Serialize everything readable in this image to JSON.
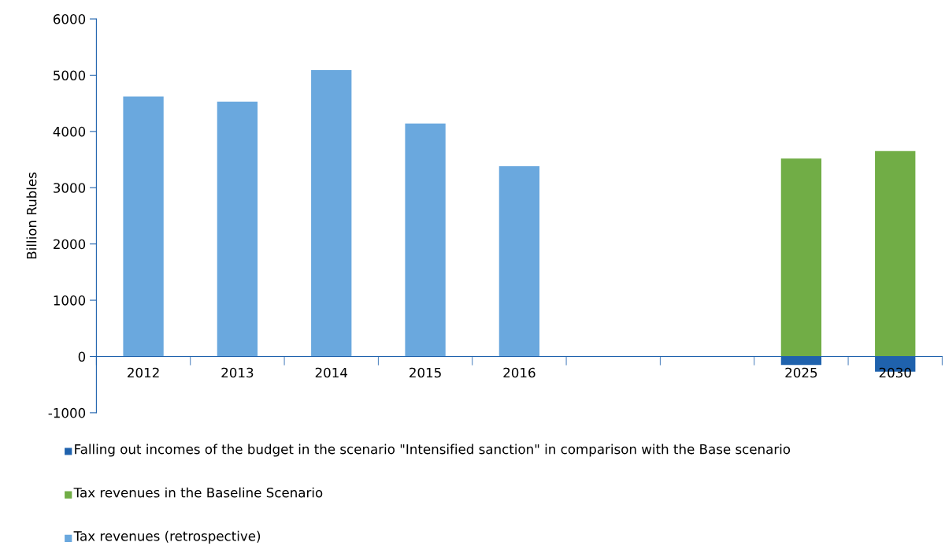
{
  "chart_data": {
    "type": "bar",
    "ylabel": "Billion Rubles",
    "categories": [
      "2012",
      "2013",
      "2014",
      "2015",
      "2016",
      null,
      null,
      "2025",
      "2030"
    ],
    "series": [
      {
        "name": "Falling out incomes of the budget in the scenario \"Intensified sanction\" in comparison with the Base scenario",
        "color": "#1f62ad",
        "values": [
          null,
          null,
          null,
          null,
          null,
          null,
          null,
          -150,
          -270
        ]
      },
      {
        "name": "Tax revenues in the Baseline Scenario",
        "color": "#71ad46",
        "values": [
          null,
          null,
          null,
          null,
          null,
          null,
          null,
          3520,
          3650
        ]
      },
      {
        "name": "Tax revenues (retrospective)",
        "color": "#6aa8de",
        "values": [
          4620,
          4530,
          5090,
          4140,
          3380,
          null,
          null,
          null,
          null
        ]
      }
    ],
    "ylim": [
      -1000,
      6000
    ],
    "yticks": [
      -1000,
      0,
      1000,
      2000,
      3000,
      4000,
      5000,
      6000
    ],
    "grid": false,
    "legend": "bottom"
  }
}
